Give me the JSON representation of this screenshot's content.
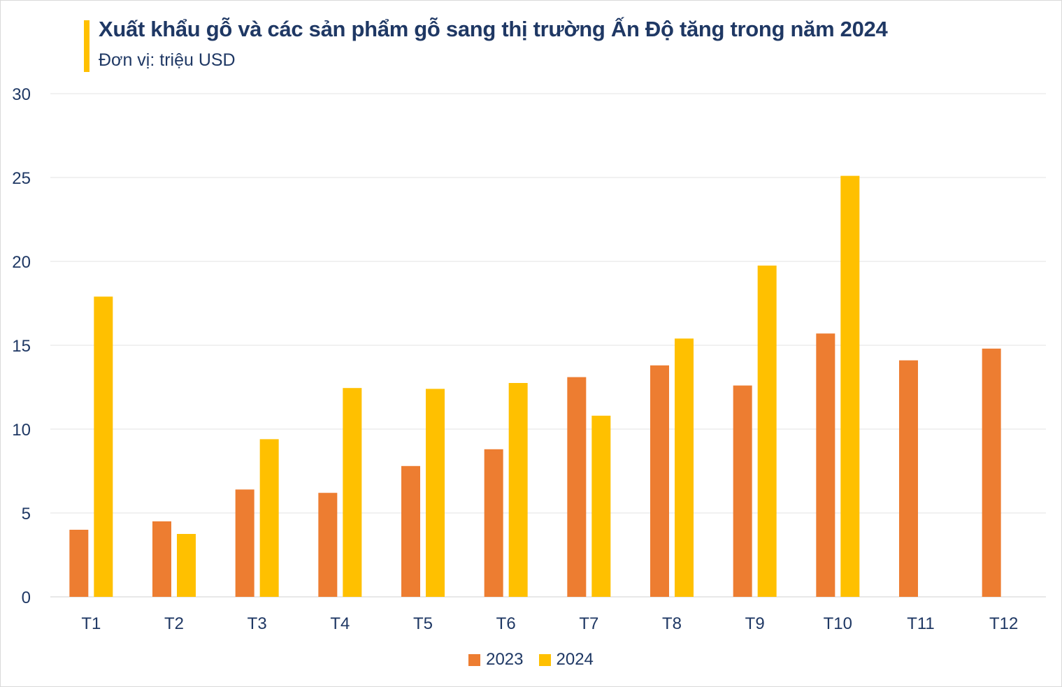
{
  "chart_data": {
    "type": "bar",
    "title": "Xuất khẩu gỗ và các sản phẩm gỗ sang thị trường Ấn Độ tăng trong năm 2024",
    "subtitle": "Đơn vị: triệu USD",
    "xlabel": "",
    "ylabel": "",
    "ylim": [
      0,
      30
    ],
    "yticks": [
      0,
      5,
      10,
      15,
      20,
      25,
      30
    ],
    "grid": true,
    "legend_position": "bottom",
    "categories": [
      "T1",
      "T2",
      "T3",
      "T4",
      "T5",
      "T6",
      "T7",
      "T8",
      "T9",
      "T10",
      "T11",
      "T12"
    ],
    "series": [
      {
        "name": "2023",
        "color": "#ed7d31",
        "values": [
          4.0,
          4.5,
          6.4,
          6.2,
          7.8,
          8.8,
          13.1,
          13.8,
          12.6,
          15.7,
          14.1,
          14.8
        ]
      },
      {
        "name": "2024",
        "color": "#ffc000",
        "values": [
          17.9,
          3.75,
          9.4,
          12.45,
          12.4,
          12.75,
          10.8,
          15.4,
          19.75,
          25.1,
          null,
          null
        ]
      }
    ]
  },
  "accent_color": "#ffc000"
}
